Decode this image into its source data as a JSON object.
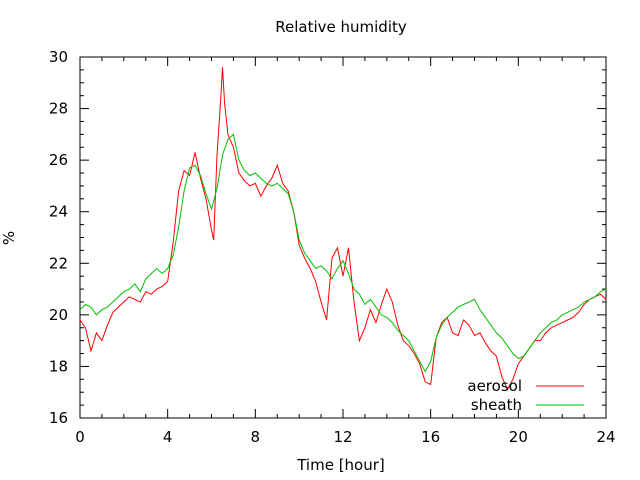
{
  "chart_data": {
    "type": "line",
    "title": "Relative humidity",
    "xlabel": "Time [hour]",
    "ylabel": "%",
    "xlim": [
      0,
      24
    ],
    "ylim": [
      16,
      30
    ],
    "x_ticks": [
      0,
      4,
      8,
      12,
      16,
      20,
      24
    ],
    "y_ticks": [
      16,
      18,
      20,
      22,
      24,
      26,
      28,
      30
    ],
    "x_tick_labels": [
      "0",
      "4",
      "8",
      "12",
      "16",
      "20",
      "24"
    ],
    "y_tick_labels": [
      "16",
      "18",
      "20",
      "22",
      "24",
      "26",
      "28",
      "30"
    ],
    "grid": false,
    "legend_position": "bottom-right",
    "series": [
      {
        "name": "aerosol",
        "color": "#ff0000",
        "x": [
          0,
          0.25,
          0.5,
          0.75,
          1,
          1.25,
          1.5,
          1.75,
          2,
          2.25,
          2.5,
          2.75,
          3,
          3.25,
          3.5,
          3.75,
          4,
          4.25,
          4.5,
          4.75,
          5,
          5.25,
          5.5,
          5.75,
          6,
          6.1,
          6.25,
          6.4,
          6.5,
          6.6,
          6.75,
          7,
          7.25,
          7.5,
          7.75,
          8,
          8.25,
          8.5,
          8.75,
          9,
          9.25,
          9.5,
          9.75,
          10,
          10.25,
          10.5,
          10.75,
          11,
          11.25,
          11.5,
          11.75,
          12,
          12.25,
          12.5,
          12.75,
          13,
          13.25,
          13.5,
          13.75,
          14,
          14.25,
          14.5,
          14.75,
          15,
          15.25,
          15.5,
          15.75,
          16,
          16.25,
          16.5,
          16.75,
          17,
          17.25,
          17.5,
          17.75,
          18,
          18.25,
          18.5,
          18.75,
          19,
          19.25,
          19.5,
          19.75,
          20,
          20.25,
          20.5,
          20.75,
          21,
          21.25,
          21.5,
          21.75,
          22,
          22.25,
          22.5,
          22.75,
          23,
          23.25,
          23.5,
          23.75,
          24
        ],
        "values": [
          19.8,
          19.5,
          18.6,
          19.3,
          19.0,
          19.6,
          20.1,
          20.3,
          20.5,
          20.7,
          20.6,
          20.5,
          20.9,
          20.8,
          21.0,
          21.1,
          21.3,
          22.8,
          24.8,
          25.6,
          25.4,
          26.3,
          25.3,
          24.5,
          23.3,
          22.9,
          26.2,
          28.1,
          29.6,
          28.2,
          27.0,
          26.5,
          25.5,
          25.2,
          25.0,
          25.1,
          24.6,
          25.0,
          25.3,
          25.8,
          25.1,
          24.8,
          24.0,
          22.7,
          22.2,
          21.8,
          21.3,
          20.5,
          19.8,
          22.2,
          22.6,
          21.5,
          22.6,
          20.5,
          19.0,
          19.5,
          20.2,
          19.7,
          20.4,
          21.0,
          20.5,
          19.6,
          19.0,
          18.8,
          18.5,
          18.1,
          17.4,
          17.3,
          19.1,
          19.7,
          19.9,
          19.3,
          19.2,
          19.8,
          19.6,
          19.2,
          19.3,
          18.9,
          18.6,
          18.4,
          17.6,
          17.1,
          17.5,
          18.1,
          18.4,
          18.7,
          19.0,
          19.0,
          19.3,
          19.5,
          19.6,
          19.7,
          19.8,
          19.9,
          20.1,
          20.4,
          20.6,
          20.7,
          20.8,
          20.6
        ]
      },
      {
        "name": "sheath",
        "color": "#00c000",
        "x": [
          0,
          0.25,
          0.5,
          0.75,
          1,
          1.25,
          1.5,
          1.75,
          2,
          2.25,
          2.5,
          2.75,
          3,
          3.25,
          3.5,
          3.75,
          4,
          4.25,
          4.5,
          4.75,
          5,
          5.25,
          5.5,
          5.75,
          6,
          6.25,
          6.5,
          6.75,
          7,
          7.25,
          7.5,
          7.75,
          8,
          8.25,
          8.5,
          8.75,
          9,
          9.25,
          9.5,
          9.75,
          10,
          10.25,
          10.5,
          10.75,
          11,
          11.25,
          11.5,
          11.75,
          12,
          12.25,
          12.5,
          12.75,
          13,
          13.25,
          13.5,
          13.75,
          14,
          14.25,
          14.5,
          14.75,
          15,
          15.25,
          15.5,
          15.75,
          16,
          16.25,
          16.5,
          16.75,
          17,
          17.25,
          17.5,
          17.75,
          18,
          18.25,
          18.5,
          18.75,
          19,
          19.25,
          19.5,
          19.75,
          20,
          20.25,
          20.5,
          20.75,
          21,
          21.25,
          21.5,
          21.75,
          22,
          22.25,
          22.5,
          22.75,
          23,
          23.25,
          23.5,
          23.75,
          24
        ],
        "values": [
          20.2,
          20.4,
          20.3,
          20.0,
          20.2,
          20.3,
          20.5,
          20.7,
          20.9,
          21.0,
          21.2,
          20.9,
          21.4,
          21.6,
          21.8,
          21.6,
          21.8,
          22.3,
          23.4,
          24.8,
          25.7,
          25.8,
          25.4,
          24.7,
          24.1,
          24.9,
          26.2,
          26.8,
          27.0,
          26.0,
          25.6,
          25.4,
          25.5,
          25.3,
          25.1,
          25.0,
          25.1,
          24.9,
          24.7,
          24.0,
          22.9,
          22.4,
          22.1,
          21.8,
          21.9,
          21.7,
          21.4,
          21.8,
          22.1,
          21.6,
          21.0,
          20.8,
          20.4,
          20.6,
          20.3,
          20.0,
          19.9,
          19.7,
          19.4,
          19.2,
          19.0,
          18.6,
          18.2,
          17.8,
          18.2,
          19.1,
          19.6,
          19.9,
          20.1,
          20.3,
          20.4,
          20.5,
          20.6,
          20.2,
          19.9,
          19.6,
          19.3,
          19.1,
          18.8,
          18.5,
          18.3,
          18.4,
          18.7,
          19.0,
          19.3,
          19.5,
          19.7,
          19.8,
          20.0,
          20.1,
          20.2,
          20.3,
          20.5,
          20.6,
          20.7,
          20.9,
          21.0
        ]
      }
    ]
  }
}
